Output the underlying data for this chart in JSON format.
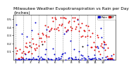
{
  "title": "Milwaukee Weather Evapotranspiration vs Rain per Day\n(Inches)",
  "title_fontsize": 4.2,
  "background_color": "#ffffff",
  "legend_labels": [
    "Rain",
    "ET"
  ],
  "legend_colors": [
    "#0000cc",
    "#cc0000"
  ],
  "ylim": [
    0,
    0.55
  ],
  "yticks": [
    0.1,
    0.2,
    0.3,
    0.4,
    0.5
  ],
  "ytick_fontsize": 3.2,
  "xtick_fontsize": 3.0,
  "dot_size": 2.0,
  "num_points": 110,
  "et_color": "#dd0000",
  "rain_color": "#0000cc",
  "black_color": "#000000",
  "grid_color": "#999999",
  "month_positions": [
    0,
    9,
    17,
    26,
    35,
    44,
    53,
    62,
    71,
    80,
    89,
    98
  ],
  "month_labels": [
    "1",
    "",
    "2",
    "",
    "3",
    "",
    "4",
    "",
    "5",
    "",
    "6",
    "",
    "7",
    "",
    "8",
    "",
    "9",
    "",
    "10",
    "",
    "11",
    "",
    "12"
  ],
  "et_seed": 77,
  "rain_seed": 42
}
